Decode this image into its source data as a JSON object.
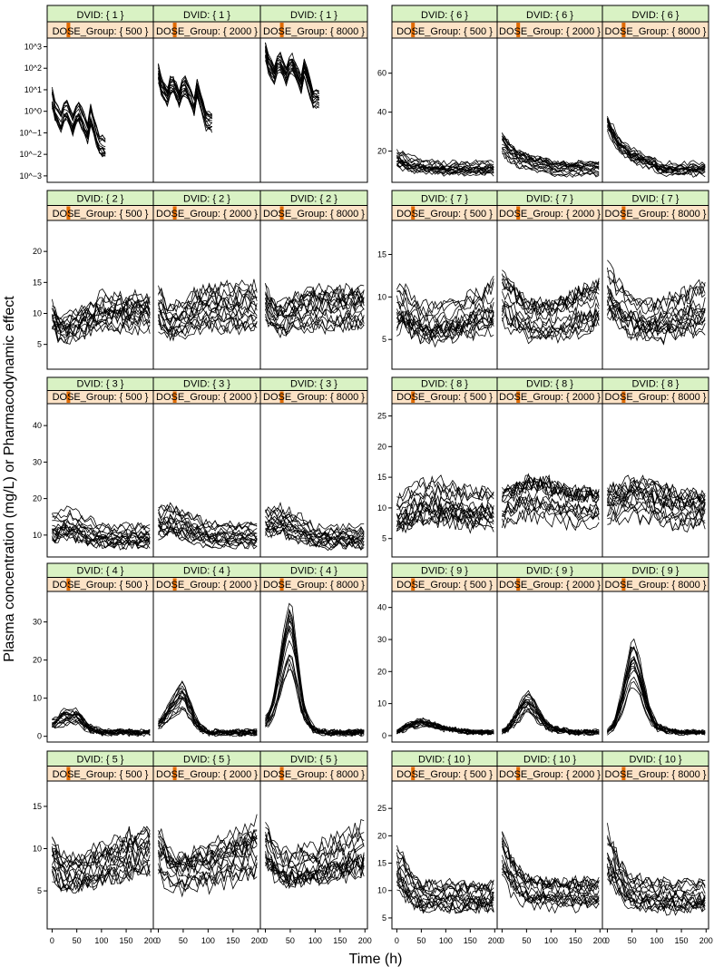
{
  "figure": {
    "ylabel": "Plasma concentration (mg/L) or Pharmacodynamic effect",
    "xlabel": "Time (h)",
    "dvid_strip_prefix": "DVID: { ",
    "dose_strip_prefix": "DOSE_Group: { ",
    "strip_suffix": " }",
    "colors": {
      "dvid_strip": "#d9f2c4",
      "dose_strip": "#fce3c7",
      "strip_marker": "#e06a00",
      "line": "#000000",
      "frame": "#000000"
    }
  },
  "chart_data": {
    "type": "line",
    "layout": "lattice, 5 rows x 2 columns of 3-panel blocks",
    "dose_groups": [
      "500",
      "2000",
      "8000"
    ],
    "x_ticks": [
      0,
      50,
      100,
      150,
      200
    ],
    "x_range": [
      -10,
      205
    ],
    "dvids": [
      {
        "dvid": "1",
        "log_scale": true,
        "y_ticks": [
          -3,
          -2,
          -1,
          0,
          1,
          2,
          3
        ],
        "y_tick_labels": [
          "10^−3",
          "10^−2",
          "10^−1",
          "10^0",
          "10^1",
          "10^2",
          "10^3"
        ],
        "y_range": [
          -3.3,
          3.4
        ],
        "x_end": [
          110,
          110,
          110
        ],
        "typical_profile": [
          [
            0,
            0.6
          ],
          [
            5,
            0.0
          ],
          [
            22,
            -0.7
          ],
          [
            25,
            0.3
          ],
          [
            45,
            -0.8
          ],
          [
            50,
            0.2
          ],
          [
            72,
            -1.0
          ],
          [
            75,
            0.1
          ],
          [
            95,
            -1.6
          ],
          [
            110,
            -1.7
          ]
        ]
      },
      {
        "dvid": "2",
        "log_scale": false,
        "y_ticks": [
          5,
          10,
          15,
          20
        ],
        "y_range": [
          1,
          25
        ],
        "x_end": [
          200,
          200,
          200
        ],
        "typical_profile": [
          [
            0,
            10
          ],
          [
            20,
            8
          ],
          [
            50,
            9
          ],
          [
            100,
            11
          ],
          [
            150,
            11
          ],
          [
            200,
            11
          ]
        ]
      },
      {
        "dvid": "3",
        "log_scale": false,
        "y_ticks": [
          10,
          20,
          30,
          40
        ],
        "y_range": [
          4,
          46
        ],
        "x_end": [
          200,
          200,
          200
        ],
        "typical_profile": [
          [
            0,
            12
          ],
          [
            30,
            13
          ],
          [
            60,
            12
          ],
          [
            100,
            10
          ],
          [
            150,
            10
          ],
          [
            200,
            10
          ]
        ]
      },
      {
        "dvid": "4",
        "log_scale": false,
        "y_ticks": [
          0,
          10,
          20,
          30
        ],
        "y_range": [
          -1.5,
          38
        ],
        "x_end": [
          200,
          200,
          200
        ],
        "typical_profile": [
          [
            0,
            3
          ],
          [
            25,
            5
          ],
          [
            50,
            5
          ],
          [
            75,
            2
          ],
          [
            100,
            1
          ],
          [
            150,
            1
          ],
          [
            200,
            1
          ]
        ]
      },
      {
        "dvid": "5",
        "log_scale": false,
        "y_ticks": [
          5,
          10,
          15
        ],
        "y_range": [
          0.5,
          18
        ],
        "x_end": [
          200,
          200,
          200
        ],
        "typical_profile": [
          [
            0,
            9
          ],
          [
            25,
            7
          ],
          [
            50,
            7
          ],
          [
            100,
            8
          ],
          [
            150,
            9
          ],
          [
            200,
            10
          ]
        ]
      },
      {
        "dvid": "6",
        "log_scale": false,
        "y_ticks": [
          20,
          40,
          60
        ],
        "y_range": [
          4,
          78
        ],
        "x_end": [
          200,
          200,
          200
        ],
        "typical_profile": [
          [
            0,
            16
          ],
          [
            25,
            13
          ],
          [
            50,
            12
          ],
          [
            100,
            11
          ],
          [
            150,
            11
          ],
          [
            200,
            11
          ]
        ]
      },
      {
        "dvid": "7",
        "log_scale": false,
        "y_ticks": [
          5,
          10,
          15
        ],
        "y_range": [
          1.5,
          19
        ],
        "x_end": [
          200,
          200,
          200
        ],
        "typical_profile": [
          [
            0,
            9
          ],
          [
            25,
            8
          ],
          [
            50,
            7
          ],
          [
            100,
            7
          ],
          [
            150,
            8
          ],
          [
            200,
            9
          ]
        ]
      },
      {
        "dvid": "8",
        "log_scale": false,
        "y_ticks": [
          5,
          10,
          15,
          20,
          25
        ],
        "y_range": [
          2,
          27
        ],
        "x_end": [
          200,
          200,
          200
        ],
        "typical_profile": [
          [
            0,
            9
          ],
          [
            25,
            10
          ],
          [
            50,
            11
          ],
          [
            100,
            11
          ],
          [
            150,
            10
          ],
          [
            200,
            10
          ]
        ]
      },
      {
        "dvid": "9",
        "log_scale": false,
        "y_ticks": [
          0,
          10,
          20,
          30,
          40
        ],
        "y_range": [
          -2,
          45
        ],
        "x_end": [
          200,
          200,
          200
        ],
        "typical_profile": [
          [
            0,
            1
          ],
          [
            25,
            3
          ],
          [
            50,
            4
          ],
          [
            75,
            3
          ],
          [
            100,
            2
          ],
          [
            150,
            1
          ],
          [
            200,
            1
          ]
        ]
      },
      {
        "dvid": "10",
        "log_scale": false,
        "y_ticks": [
          5,
          10,
          15,
          20,
          25
        ],
        "y_range": [
          3,
          30
        ],
        "x_end": [
          200,
          200,
          200
        ],
        "typical_profile": [
          [
            0,
            14
          ],
          [
            25,
            11
          ],
          [
            50,
            9
          ],
          [
            100,
            9
          ],
          [
            150,
            9
          ],
          [
            200,
            9
          ]
        ]
      }
    ]
  }
}
